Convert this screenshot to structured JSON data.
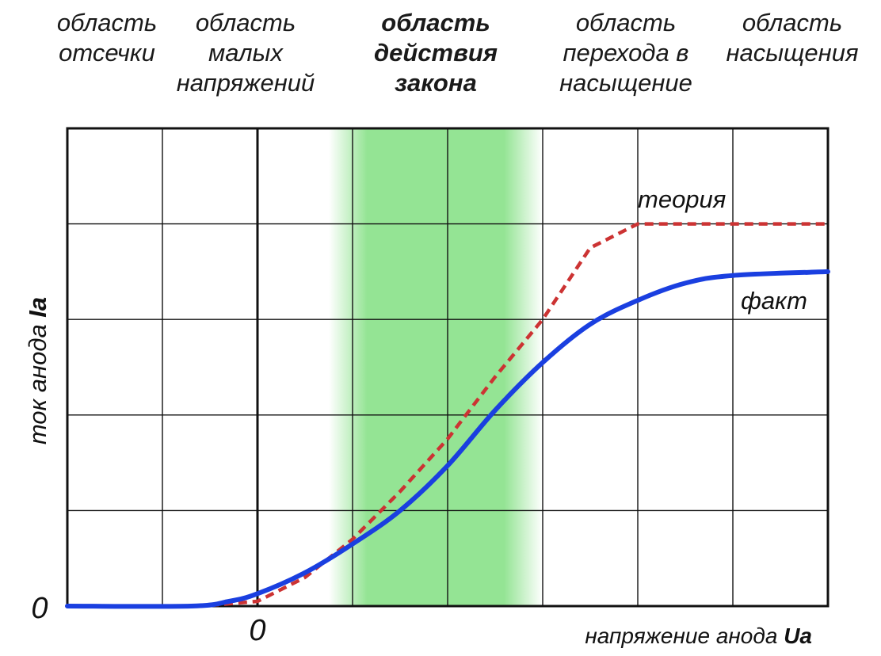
{
  "chart_data": {
    "type": "line",
    "regions": [
      {
        "label": "область\nотсечки",
        "bold": false
      },
      {
        "label": "область\nмалых\nнапряжений",
        "bold": false
      },
      {
        "label": "область\nдействия\nзакона",
        "bold": true
      },
      {
        "label": "область\nперехода в\nнасыщение",
        "bold": false
      },
      {
        "label": "область\nнасыщения",
        "bold": false
      }
    ],
    "xlabel_prefix": "напряжение анода ",
    "xlabel_symbol": "Ua",
    "ylabel_prefix": "ток анода ",
    "ylabel_symbol": "Ia",
    "x_zero_label": "0",
    "y_zero_label": "0",
    "xlim": [
      -2,
      6
    ],
    "ylim": [
      0,
      5
    ],
    "grid": true,
    "highlight_band": {
      "from": 0.75,
      "to": 3.0,
      "color": "#94e494"
    },
    "series": [
      {
        "name": "теория",
        "color": "#cc3333",
        "style": "dashed",
        "x": [
          -2,
          -0.6,
          0,
          0.5,
          1.0,
          1.5,
          2.0,
          2.5,
          3.0,
          3.5,
          4.0,
          6.0
        ],
        "y": [
          0,
          0,
          0.05,
          0.3,
          0.7,
          1.2,
          1.75,
          2.4,
          3.0,
          3.75,
          4.0,
          4.0
        ]
      },
      {
        "name": "факт",
        "color": "#1a3fe0",
        "style": "solid",
        "x": [
          -2,
          -0.7,
          -0.3,
          0,
          0.5,
          1.0,
          1.5,
          2.0,
          2.5,
          3.0,
          3.5,
          4.0,
          4.5,
          5.0,
          6.0
        ],
        "y": [
          0,
          0,
          0.05,
          0.13,
          0.35,
          0.65,
          1.0,
          1.47,
          2.05,
          2.55,
          2.95,
          3.2,
          3.38,
          3.46,
          3.5
        ]
      }
    ]
  }
}
